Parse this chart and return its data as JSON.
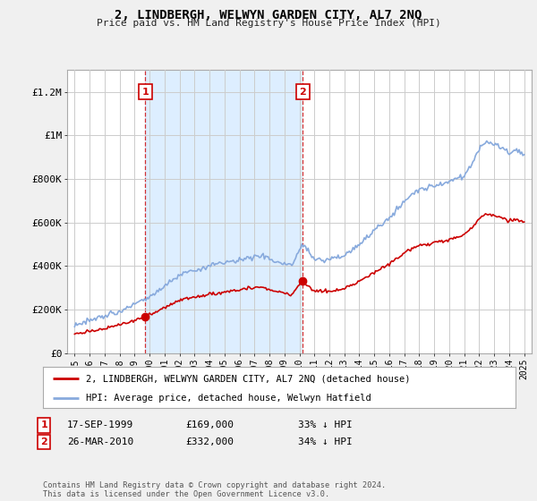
{
  "title": "2, LINDBERGH, WELWYN GARDEN CITY, AL7 2NQ",
  "subtitle": "Price paid vs. HM Land Registry's House Price Index (HPI)",
  "bg_color": "#f0f0f0",
  "plot_bg_color": "#ffffff",
  "grid_color": "#cccccc",
  "shade_color": "#ddeeff",
  "hpi_color": "#88aadd",
  "price_color": "#cc0000",
  "sale1_year": 1999.72,
  "sale1_price": 169000,
  "sale2_year": 2010.23,
  "sale2_price": 332000,
  "ylim_min": 0,
  "ylim_max": 1300000,
  "xlim_min": 1994.5,
  "xlim_max": 2025.5,
  "yticks": [
    0,
    200000,
    400000,
    600000,
    800000,
    1000000,
    1200000
  ],
  "ytick_labels": [
    "£0",
    "£200K",
    "£400K",
    "£600K",
    "£800K",
    "£1M",
    "£1.2M"
  ],
  "xtick_years": [
    1995,
    1996,
    1997,
    1998,
    1999,
    2000,
    2001,
    2002,
    2003,
    2004,
    2005,
    2006,
    2007,
    2008,
    2009,
    2010,
    2011,
    2012,
    2013,
    2014,
    2015,
    2016,
    2017,
    2018,
    2019,
    2020,
    2021,
    2022,
    2023,
    2024,
    2025
  ],
  "legend_label_price": "2, LINDBERGH, WELWYN GARDEN CITY, AL7 2NQ (detached house)",
  "legend_label_hpi": "HPI: Average price, detached house, Welwyn Hatfield",
  "annotation1_label": "1",
  "annotation1_date": "17-SEP-1999",
  "annotation1_price": "£169,000",
  "annotation1_hpi": "33% ↓ HPI",
  "annotation2_label": "2",
  "annotation2_date": "26-MAR-2010",
  "annotation2_price": "£332,000",
  "annotation2_hpi": "34% ↓ HPI",
  "footer": "Contains HM Land Registry data © Crown copyright and database right 2024.\nThis data is licensed under the Open Government Licence v3.0."
}
